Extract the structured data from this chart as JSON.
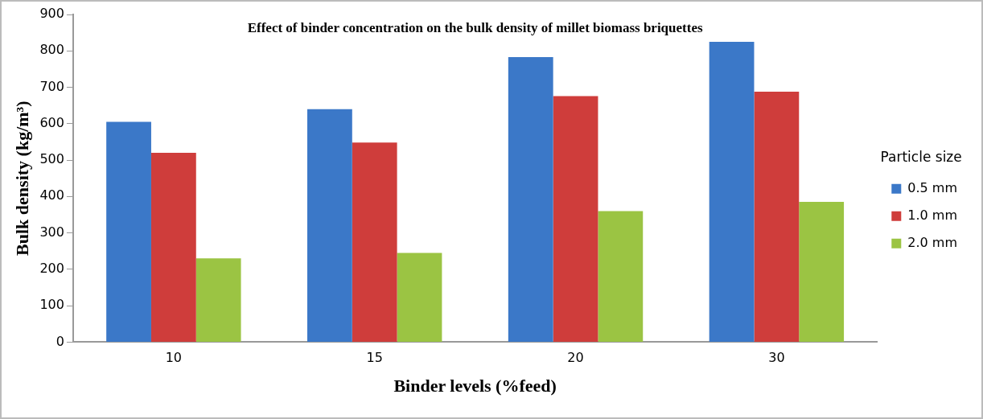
{
  "chart_data": {
    "type": "bar",
    "title": "Effect of binder concentration on the bulk density of millet biomass briquettes",
    "xlabel": "Binder levels (%feed)",
    "ylabel": "Bulk density (kg/m³)",
    "legend_title": "Particle size",
    "categories": [
      "10",
      "15",
      "20",
      "30"
    ],
    "series": [
      {
        "name": "0.5 mm",
        "color": "#3b78c8",
        "values": [
          605,
          640,
          783,
          825
        ]
      },
      {
        "name": "1.0 mm",
        "color": "#cf3d3b",
        "values": [
          520,
          548,
          676,
          688
        ]
      },
      {
        "name": "2.0 mm",
        "color": "#9bc443",
        "values": [
          230,
          245,
          360,
          385
        ]
      }
    ],
    "ylim": [
      0,
      900
    ],
    "yticks": [
      0,
      100,
      200,
      300,
      400,
      500,
      600,
      700,
      800,
      900
    ],
    "grid": false,
    "legend": "right"
  }
}
